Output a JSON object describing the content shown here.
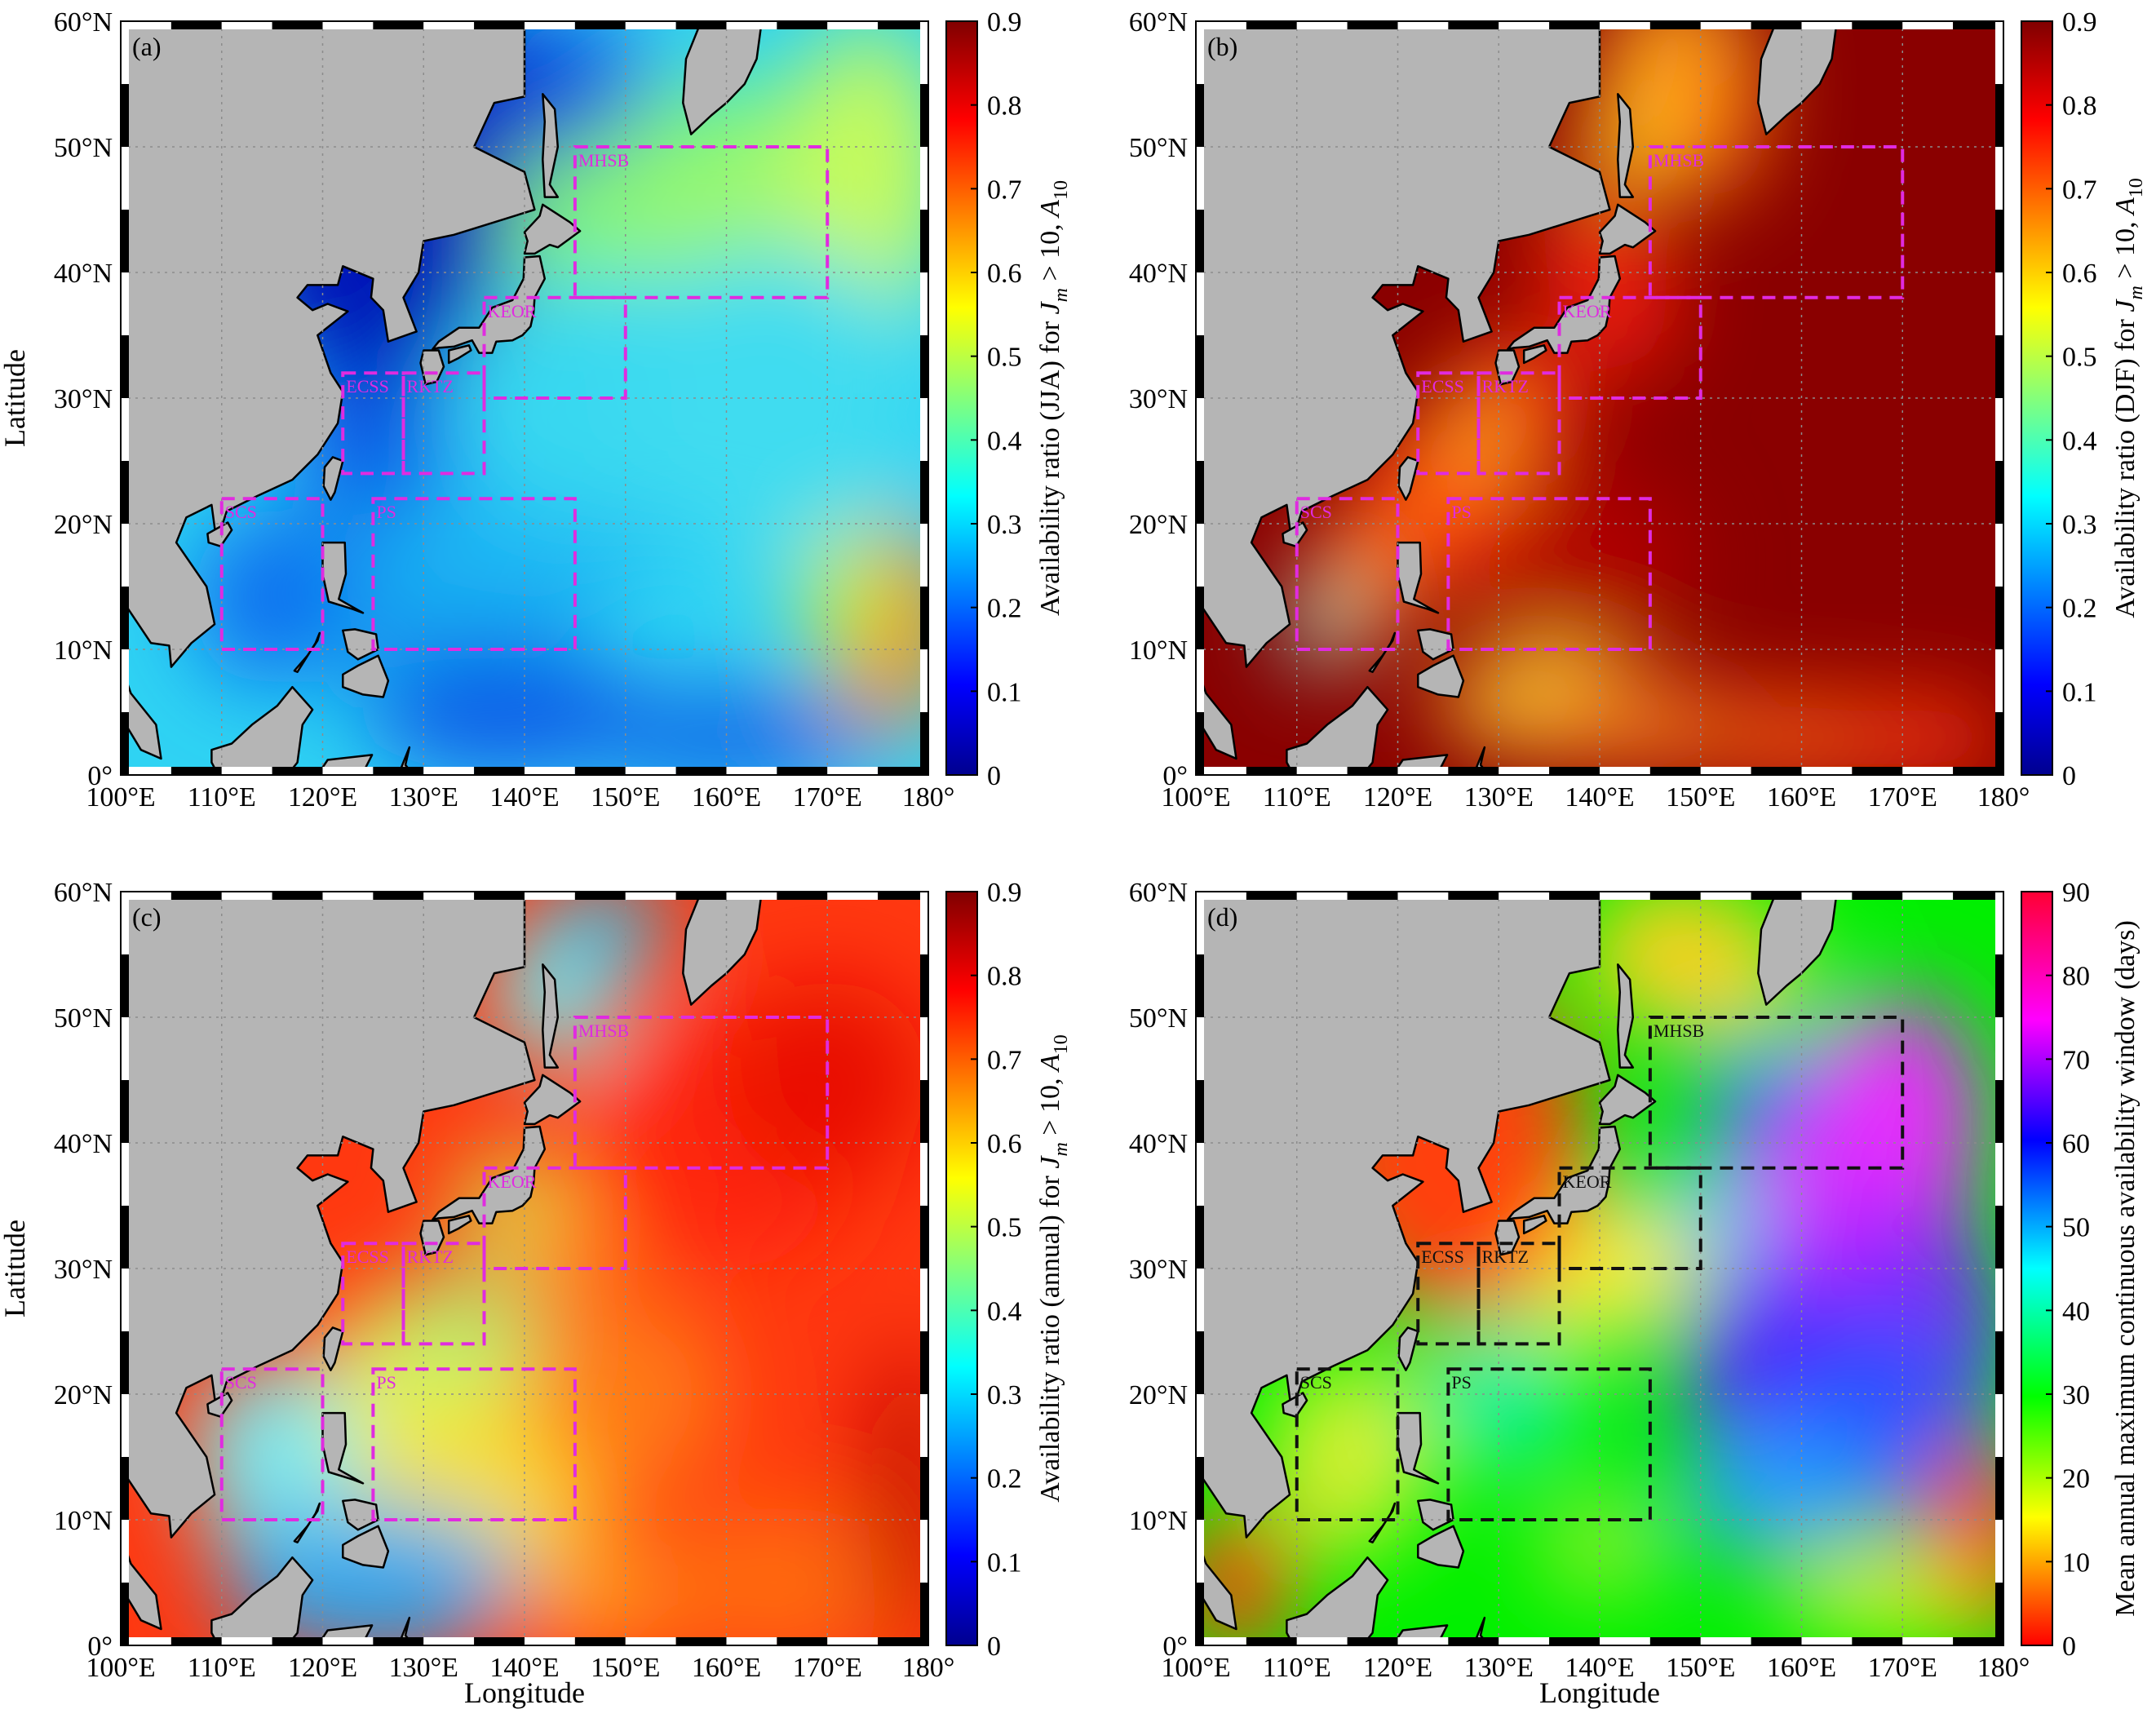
{
  "panels": [
    {
      "label": "(a)",
      "ylabel": "Latitude",
      "xlabel": "",
      "colorbar_label_prefix": "Availability ratio (JJA) for ",
      "colorbar_ticks": [
        "0",
        "0.1",
        "0.2",
        "0.3",
        "0.4",
        "0.5",
        "0.6",
        "0.7",
        "0.8",
        "0.9"
      ],
      "box_color": "#e02be0",
      "field": "jja"
    },
    {
      "label": "(b)",
      "ylabel": "",
      "xlabel": "",
      "colorbar_label_prefix": "Availability ratio (DJF) for ",
      "colorbar_ticks": [
        "0",
        "0.1",
        "0.2",
        "0.3",
        "0.4",
        "0.5",
        "0.6",
        "0.7",
        "0.8",
        "0.9"
      ],
      "box_color": "#e02be0",
      "field": "djf"
    },
    {
      "label": "(c)",
      "ylabel": "Latitude",
      "xlabel": "Longitude",
      "colorbar_label_prefix": "Availability ratio (annual) for ",
      "colorbar_ticks": [
        "0",
        "0.1",
        "0.2",
        "0.3",
        "0.4",
        "0.5",
        "0.6",
        "0.7",
        "0.8",
        "0.9"
      ],
      "box_color": "#e02be0",
      "field": "annual"
    },
    {
      "label": "(d)",
      "ylabel": "",
      "xlabel": "Longitude",
      "colorbar_label_prefix": "Mean annual maximum continuous availability window (days)",
      "colorbar_ticks": [
        "0",
        "10",
        "20",
        "30",
        "40",
        "50",
        "60",
        "70",
        "80",
        "90"
      ],
      "box_color": "#111111",
      "field": "window"
    }
  ],
  "axes": {
    "lon_ticks": [
      "100°E",
      "110°E",
      "120°E",
      "130°E",
      "140°E",
      "150°E",
      "160°E",
      "170°E",
      "180°"
    ],
    "lat_ticks": [
      "0°",
      "10°N",
      "20°N",
      "30°N",
      "40°N",
      "50°N",
      "60°N"
    ],
    "lon_range": [
      100,
      180
    ],
    "lat_range": [
      0,
      60
    ]
  },
  "colorbar_label_math": {
    "J": "J",
    "m": "m",
    "gt": " > 10, ",
    "A": "A",
    "sub": "10"
  },
  "regions": [
    {
      "name": "MHSB",
      "lon": [
        145,
        170
      ],
      "lat": [
        38,
        50
      ]
    },
    {
      "name": "KEOR",
      "lon": [
        136,
        150
      ],
      "lat": [
        30,
        38
      ]
    },
    {
      "name": "ECSS",
      "lon": [
        122,
        128
      ],
      "lat": [
        24,
        32
      ]
    },
    {
      "name": "RKTZ",
      "lon": [
        128,
        136
      ],
      "lat": [
        24,
        32
      ]
    },
    {
      "name": "SCS",
      "lon": [
        110,
        120
      ],
      "lat": [
        10,
        22
      ]
    },
    {
      "name": "PS",
      "lon": [
        125,
        145
      ],
      "lat": [
        10,
        22
      ]
    }
  ],
  "colors": {
    "land": "#b5b5b5",
    "grid": "#8c8c8c"
  }
}
